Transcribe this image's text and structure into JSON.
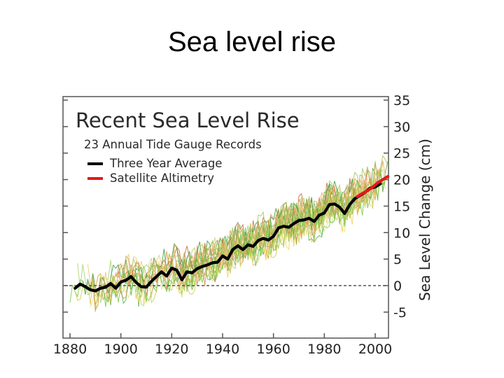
{
  "slide": {
    "title": "Sea level rise"
  },
  "chart_data": {
    "type": "line",
    "title": "Recent Sea Level Rise",
    "subtitle": "23 Annual Tide Gauge Records",
    "xlabel": "",
    "ylabel": "Sea Level Change (cm)",
    "xlim": [
      1880,
      2007
    ],
    "ylim": [
      -10,
      35
    ],
    "x_ticks": [
      1880,
      1900,
      1920,
      1940,
      1960,
      1980,
      2000
    ],
    "y_ticks": [
      35,
      30,
      25,
      20,
      15,
      10,
      5,
      0,
      -5
    ],
    "zero_reference_line": true,
    "legend": {
      "position": "top-left",
      "entries": [
        {
          "name": "Three Year Average",
          "color": "#000000"
        },
        {
          "name": "Satellite Altimetry",
          "color": "#e21a1a"
        }
      ]
    },
    "series": [
      {
        "name": "Three Year Average",
        "color": "#000000",
        "x": [
          1882,
          1884,
          1886,
          1888,
          1890,
          1892,
          1894,
          1896,
          1898,
          1900,
          1902,
          1904,
          1906,
          1908,
          1910,
          1912,
          1914,
          1916,
          1918,
          1920,
          1922,
          1924,
          1926,
          1928,
          1930,
          1932,
          1934,
          1936,
          1938,
          1940,
          1942,
          1944,
          1946,
          1948,
          1950,
          1952,
          1954,
          1956,
          1958,
          1960,
          1962,
          1964,
          1966,
          1968,
          1970,
          1972,
          1974,
          1976,
          1978,
          1980,
          1982,
          1984,
          1986,
          1988,
          1990,
          1992,
          1994,
          1996,
          1998,
          2000,
          2002
        ],
        "values": [
          -0.5,
          0.3,
          -0.2,
          -0.8,
          -1.0,
          -0.5,
          -0.3,
          0.4,
          -0.5,
          0.7,
          1.0,
          1.7,
          0.6,
          -0.2,
          -0.3,
          0.8,
          1.7,
          2.6,
          1.8,
          3.3,
          2.9,
          1.1,
          2.6,
          2.4,
          3.2,
          3.6,
          3.9,
          4.3,
          4.4,
          5.6,
          5.0,
          6.8,
          7.5,
          6.8,
          7.7,
          7.4,
          8.5,
          8.9,
          8.6,
          9.3,
          10.9,
          11.2,
          11.0,
          11.7,
          12.3,
          12.4,
          12.7,
          12.1,
          13.3,
          13.7,
          15.3,
          15.4,
          14.8,
          13.6,
          15.3,
          16.4,
          17.0,
          17.6,
          18.4,
          18.6,
          19.2
        ]
      },
      {
        "name": "Satellite Altimetry",
        "color": "#e21a1a",
        "x": [
          1993,
          1995,
          1997,
          1999,
          2001,
          2003,
          2005
        ],
        "values": [
          16.8,
          17.4,
          17.9,
          18.6,
          19.4,
          20.0,
          20.6
        ]
      }
    ]
  }
}
